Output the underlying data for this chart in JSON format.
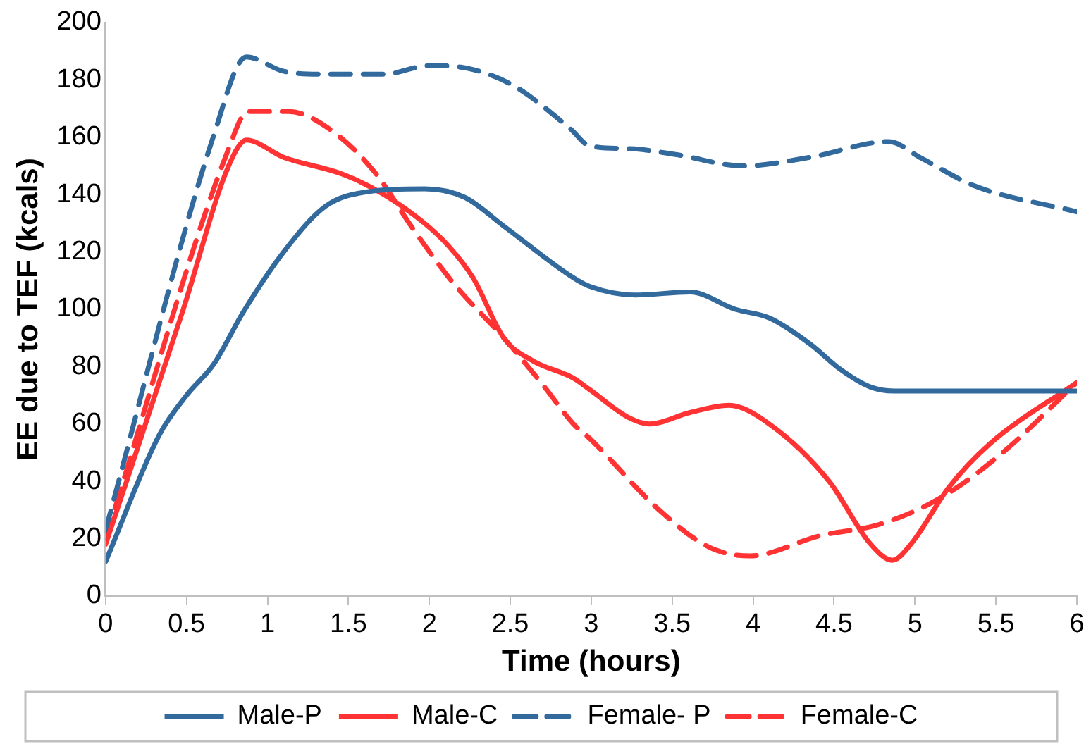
{
  "chart_data": {
    "type": "line",
    "xlabel": "Time (hours)",
    "ylabel": "EE due to TEF (kcals)",
    "xlim": [
      0,
      6
    ],
    "xticks": [
      0,
      0.5,
      1,
      1.5,
      2,
      2.5,
      3,
      3.5,
      4,
      4.5,
      5,
      5.5,
      6
    ],
    "ylim": [
      0,
      200
    ],
    "yticks": [
      0,
      20,
      40,
      60,
      80,
      100,
      120,
      140,
      160,
      180,
      200
    ],
    "grid": false,
    "legend": "bottom",
    "marker": "none",
    "series": [
      {
        "name": "Male-P",
        "color": "#336a9e",
        "line_style": "solid",
        "x": [
          0,
          0.33,
          0.5,
          0.67,
          0.85,
          1.1,
          1.36,
          1.62,
          1.97,
          2.22,
          2.46,
          2.89,
          2.99,
          3.27,
          3.61,
          3.89,
          4.1,
          4.35,
          4.54,
          4.72,
          4.87,
          6
        ],
        "values": [
          12,
          56,
          70,
          81,
          99,
          120,
          136,
          141,
          142,
          139,
          129,
          111,
          108,
          105,
          106,
          100,
          97,
          88,
          79,
          73,
          71.5,
          71.5
        ]
      },
      {
        "name": "Male-C",
        "color": "#ff3333",
        "line_style": "solid",
        "x": [
          0,
          0.48,
          0.76,
          0.87,
          1.1,
          1.47,
          1.72,
          1.97,
          2.12,
          2.27,
          2.46,
          2.64,
          2.89,
          2.99,
          3.24,
          3.36,
          3.61,
          3.85,
          4.1,
          4.47,
          4.72,
          4.86,
          4.98,
          5.21,
          5.46,
          6
        ],
        "values": [
          18,
          100,
          150,
          159,
          153,
          147,
          140,
          130,
          122,
          111,
          90,
          82,
          76,
          72,
          62,
          60,
          64,
          66.5,
          60,
          40,
          18.5,
          12.5,
          18.5,
          38,
          53,
          74.5
        ]
      },
      {
        "name": "Female- P",
        "color": "#336a9e",
        "line_style": "dashed",
        "x": [
          0,
          0.67,
          0.87,
          1.1,
          1.35,
          1.72,
          2,
          2.24,
          2.52,
          2.87,
          2.99,
          3.24,
          3.52,
          3.94,
          4.35,
          4.84,
          5.03,
          5.37,
          6
        ],
        "values": [
          23,
          161,
          188,
          183,
          182,
          182,
          185,
          184,
          178,
          163,
          157,
          156,
          154,
          150,
          153,
          158.5,
          153,
          143,
          134
        ]
      },
      {
        "name": "Female-C",
        "color": "#ff3333",
        "line_style": "dashed",
        "x": [
          0,
          0.76,
          0.88,
          1.13,
          1.38,
          1.66,
          1.9,
          2.15,
          2.46,
          2.71,
          2.89,
          2.99,
          3.42,
          3.73,
          3.98,
          4.41,
          4.78,
          5.15,
          5.52,
          6
        ],
        "values": [
          20,
          156,
          169,
          169,
          163,
          148,
          128,
          109,
          90,
          73,
          60,
          55,
          30,
          17,
          14,
          21,
          25,
          34,
          49,
          74.5
        ]
      }
    ]
  }
}
